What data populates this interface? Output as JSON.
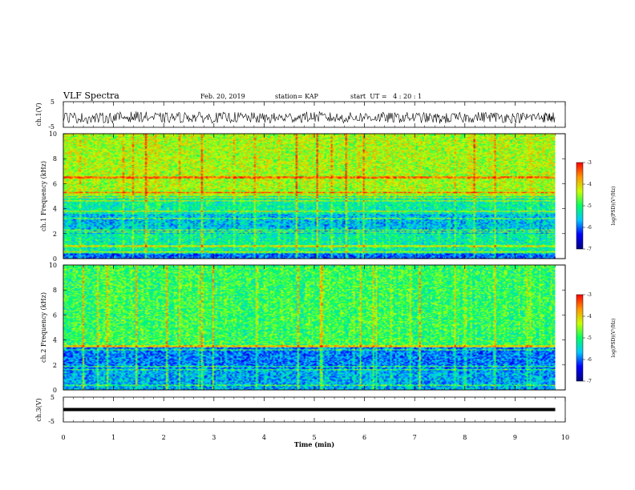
{
  "header": {
    "title": "VLF Spectra",
    "date": "Feb. 20, 2019",
    "station": "station= KAP",
    "start_ut": "start  UT =   4 : 20 : 1"
  },
  "colors": {
    "cmap": [
      "#000080",
      "#0000ff",
      "#00c8ff",
      "#00ff64",
      "#c8ff00",
      "#ff9600",
      "#ff0000",
      "#ffffff"
    ]
  },
  "chart_data": [
    {
      "id": "ch1-waveform",
      "type": "line",
      "ylabel": "ch.1(V)",
      "ylim": [
        -5,
        5
      ],
      "yticks": [
        "5",
        "-5"
      ],
      "xlim": [
        0,
        10
      ],
      "description_level": "noisy trace around -1 V",
      "x": [
        0,
        0.5,
        1,
        1.5,
        2,
        2.5,
        3,
        3.5,
        4,
        4.5,
        5,
        5.5,
        6,
        6.5,
        7,
        7.5,
        8,
        8.5,
        9,
        9.5,
        9.8
      ],
      "y": [
        -1.0,
        -1.5,
        -1.2,
        -0.8,
        -1.4,
        -1.0,
        -1.3,
        -1.1,
        -1.5,
        -1.2,
        -0.9,
        -1.4,
        -1.0,
        -1.3,
        -1.1,
        -1.6,
        -1.2,
        -0.9,
        -1.3,
        -1.0,
        -1.2
      ]
    },
    {
      "id": "ch1-spectrogram",
      "type": "heatmap",
      "ylabel": "ch.1 Frequency (kHz)",
      "ylim": [
        0,
        10
      ],
      "yticks": [
        "0",
        "2",
        "4",
        "6",
        "8",
        "10"
      ],
      "xlim": [
        0,
        10
      ],
      "data_end_min": 9.8,
      "colorbar": {
        "label": "log(PSD)(V²/Hz)",
        "range": [
          -7,
          -3
        ],
        "ticks": [
          "-3",
          "-4",
          "-5",
          "-6",
          "-7"
        ]
      },
      "bands_khz": [
        {
          "range": [
            0,
            0.5
          ],
          "level": -6.0
        },
        {
          "range": [
            0.5,
            2.0
          ],
          "level": -5.2
        },
        {
          "range": [
            2.0,
            3.6
          ],
          "level": -5.6
        },
        {
          "range": [
            3.6,
            5.0
          ],
          "level": -5.2
        },
        {
          "range": [
            5.0,
            10.0
          ],
          "level": -4.4
        }
      ],
      "lines_khz": [
        0.5,
        1.0,
        2.1,
        2.3,
        3.2,
        3.8,
        4.6,
        4.9,
        5.3,
        6.5
      ]
    },
    {
      "id": "ch2-spectrogram",
      "type": "heatmap",
      "ylabel": "ch.2 Frequency (kHz)",
      "ylim": [
        0,
        10
      ],
      "yticks": [
        "0",
        "2",
        "4",
        "6",
        "8",
        "10"
      ],
      "xlim": [
        0,
        10
      ],
      "data_end_min": 9.8,
      "colorbar": {
        "label": "log(PSD)(V²/Hz)",
        "range": [
          -7,
          -3
        ],
        "ticks": [
          "-3",
          "-4",
          "-5",
          "-6",
          "-7"
        ]
      },
      "bands_khz": [
        {
          "range": [
            0,
            1.6
          ],
          "level": -5.7
        },
        {
          "range": [
            1.6,
            3.4
          ],
          "level": -5.9
        },
        {
          "range": [
            3.4,
            10.0
          ],
          "level": -4.9
        }
      ],
      "lines_khz": [
        0.4,
        1.6,
        1.9,
        3.2,
        3.5
      ]
    },
    {
      "id": "ch3-waveform",
      "type": "line",
      "ylabel": "ch.3(V)",
      "ylim": [
        -5,
        5
      ],
      "yticks": [
        "5",
        "-5"
      ],
      "xlim": [
        0,
        10
      ],
      "xlabel": "Time (min)",
      "xticks": [
        "0",
        "1",
        "2",
        "3",
        "4",
        "5",
        "6",
        "7",
        "8",
        "9",
        "10"
      ],
      "x": [
        0,
        9.8
      ],
      "y": [
        0,
        0
      ]
    }
  ]
}
